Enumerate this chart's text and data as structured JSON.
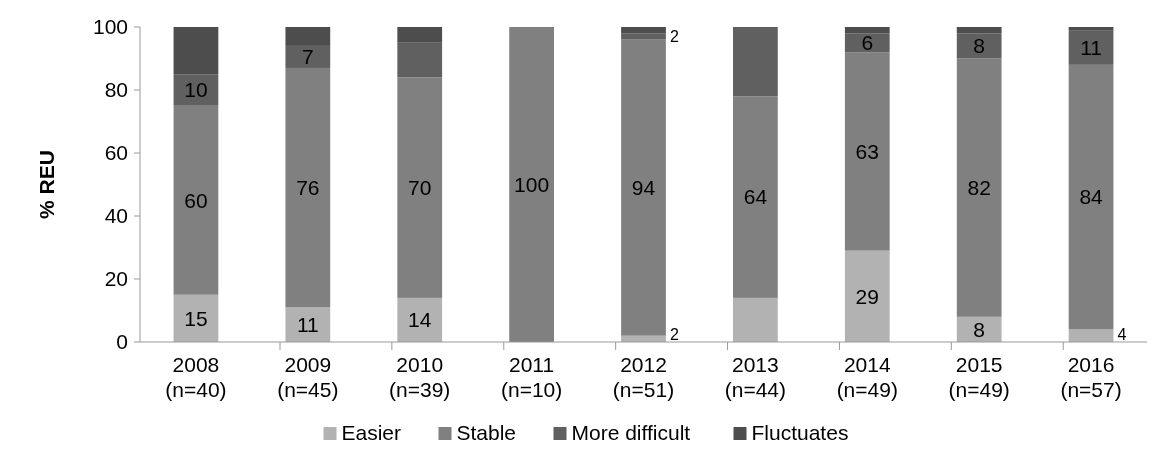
{
  "chart_data": {
    "type": "bar",
    "stacked": true,
    "ylabel": "% REU",
    "categories": [
      "2008\n(n=40)",
      "2009\n(n=45)",
      "2010\n(n=39)",
      "2011\n(n=10)",
      "2012\n(n=51)",
      "2013\n(n=44)",
      "2014\n(n=49)",
      "2015\n(n=49)",
      "2016\n(n=57)"
    ],
    "series": [
      {
        "name": "Easier",
        "color": "#b2b2b2",
        "values": [
          15,
          11,
          14,
          0,
          2,
          14,
          29,
          8,
          4
        ],
        "value_labels": [
          "15",
          "11",
          "14",
          null,
          "2",
          null,
          "29",
          "8",
          "4"
        ]
      },
      {
        "name": "Stable",
        "color": "#808080",
        "values": [
          60,
          76,
          70,
          100,
          94,
          64,
          63,
          82,
          84
        ],
        "value_labels": [
          "60",
          "76",
          "70",
          "100",
          "94",
          "64",
          "63",
          "82",
          "84"
        ]
      },
      {
        "name": "More difficult",
        "color": "#606060",
        "values": [
          10,
          7,
          11,
          0,
          2,
          22,
          6,
          8,
          11
        ],
        "value_labels": [
          "10",
          "7",
          null,
          null,
          "2",
          null,
          "6",
          "8",
          "11"
        ]
      },
      {
        "name": "Fluctuates",
        "color": "#4d4d4d",
        "values": [
          15,
          6,
          5,
          0,
          2,
          0,
          2,
          2,
          1
        ],
        "value_labels": [
          null,
          null,
          null,
          null,
          null,
          null,
          null,
          null,
          null
        ]
      }
    ],
    "ylim": [
      0,
      100
    ],
    "yticks": [
      0,
      20,
      40,
      60,
      80,
      100
    ],
    "legend": "bottom"
  }
}
